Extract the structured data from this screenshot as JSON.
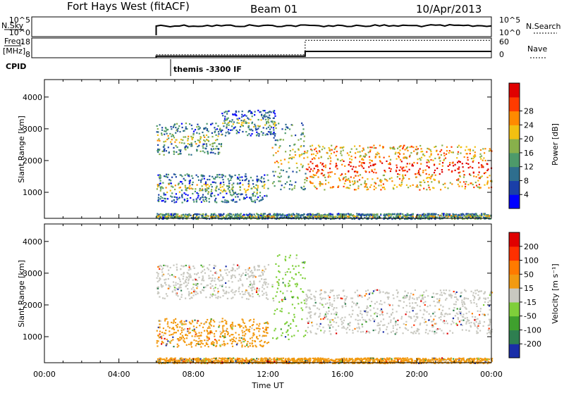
{
  "header": {
    "station": "Fort Hays West (fitACF)",
    "beam": "Beam 01",
    "date": "10/Apr/2013"
  },
  "noise_panel": {
    "left_label": "N.Sky",
    "left_ticks": [
      "10^5",
      "10^0"
    ],
    "right_ticks": [
      "10^5",
      "10^0"
    ],
    "right_label": "N.Search"
  },
  "freq_panel": {
    "left_label_1": "Freq.",
    "left_label_2": "[MHz]",
    "left_ticks": [
      "18",
      "8"
    ],
    "right_ticks": [
      "60",
      "0"
    ],
    "right_label": "Nave",
    "freq_steps": [
      {
        "t": 6.0,
        "value": 8.8
      },
      {
        "t": 14.0,
        "value": 11.2
      }
    ],
    "nave_steps": [
      {
        "t": 6.0,
        "value": 9
      },
      {
        "t": 14.0,
        "value": 53
      }
    ]
  },
  "cpid": {
    "label": "CPID",
    "text": "themis -3300 IF"
  },
  "chart_data": [
    {
      "type": "heatmap",
      "quantity": "Power",
      "ylabel": "Slant Range [km]",
      "yticks": [
        "1000",
        "2000",
        "3000",
        "4000"
      ],
      "ylim": [
        180,
        4550
      ],
      "xlim": [
        0,
        24
      ],
      "colorbar": {
        "label": "Power [dB]",
        "ticks": [
          "4",
          "8",
          "12",
          "16",
          "20",
          "24",
          "28"
        ],
        "range": [
          0,
          32
        ],
        "colors": [
          "#0000ff",
          "#1a3fa8",
          "#2e6e8e",
          "#4d9a6a",
          "#88b04b",
          "#f2c011",
          "#ff8a00",
          "#ff3b00",
          "#e00000"
        ]
      },
      "regions": [
        {
          "t0": 6.0,
          "t1": 12.0,
          "r0": 700,
          "r1": 1600,
          "level": 0.25
        },
        {
          "t0": 6.0,
          "t1": 9.5,
          "r0": 2200,
          "r1": 3200,
          "level": 0.3
        },
        {
          "t0": 9.5,
          "t1": 12.4,
          "r0": 2800,
          "r1": 3600,
          "level": 0.2
        },
        {
          "t0": 12.2,
          "t1": 14.0,
          "r0": 1100,
          "r1": 3200,
          "level": 0.35
        },
        {
          "t0": 14.0,
          "t1": 24.0,
          "r0": 1100,
          "r1": 2500,
          "level": 0.65
        },
        {
          "t0": 6.0,
          "t1": 24.0,
          "r0": 180,
          "r1": 350,
          "level": 0.3
        }
      ]
    },
    {
      "type": "heatmap",
      "quantity": "Velocity",
      "ylabel": "Slant Range [km]",
      "yticks": [
        "1000",
        "2000",
        "3000",
        "4000"
      ],
      "ylim": [
        180,
        4550
      ],
      "xlim": [
        0,
        24
      ],
      "xticks": [
        "00:00",
        "04:00",
        "08:00",
        "12:00",
        "16:00",
        "20:00",
        "00:00"
      ],
      "xlabel": "Time UT",
      "colorbar": {
        "label": "Velocity [m s⁻¹]",
        "ticks": [
          "200",
          "100",
          "50",
          "15",
          "-15",
          "-50",
          "-100",
          "-200"
        ],
        "colors": [
          "#1a2ea8",
          "#2e7f50",
          "#3fa02e",
          "#7fcf3a",
          "#c8c8c0",
          "#f29a11",
          "#ff7a00",
          "#ff3000",
          "#e00000"
        ]
      },
      "regions": [
        {
          "t0": 6.0,
          "t1": 12.0,
          "r0": 700,
          "r1": 1600,
          "color": "#f29a11"
        },
        {
          "t0": 6.0,
          "t1": 12.0,
          "r0": 2200,
          "r1": 3300,
          "color": "#c8c8c0"
        },
        {
          "t0": 12.2,
          "t1": 14.0,
          "r0": 900,
          "r1": 3600,
          "color": "#7fcf3a"
        },
        {
          "t0": 14.0,
          "t1": 24.0,
          "r0": 1100,
          "r1": 2500,
          "color": "#c8c8c0"
        },
        {
          "t0": 6.0,
          "t1": 24.0,
          "r0": 180,
          "r1": 350,
          "color": "#f29a11"
        }
      ]
    }
  ]
}
